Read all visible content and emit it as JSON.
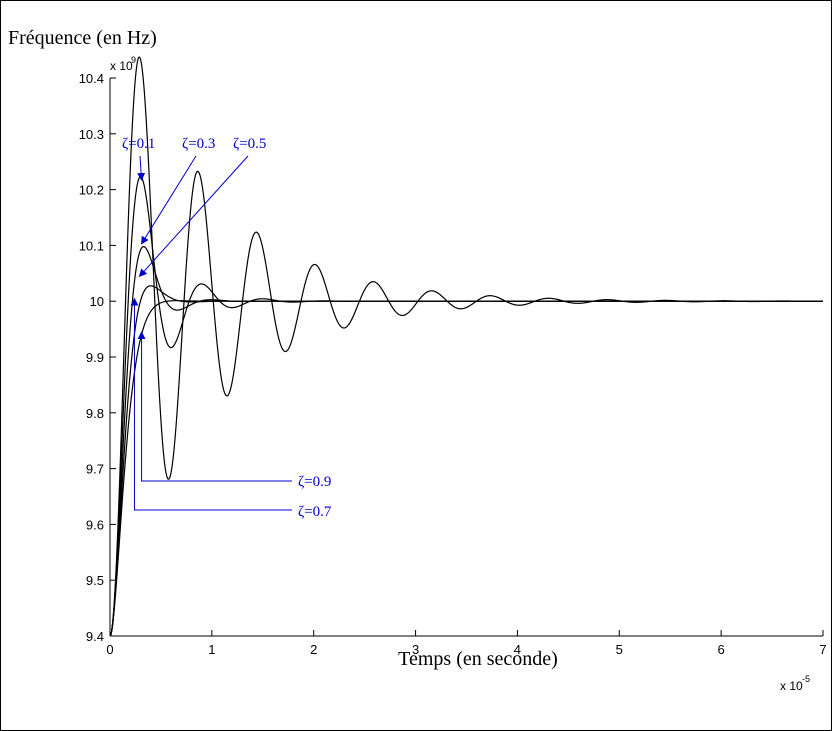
{
  "chart_data": {
    "type": "line",
    "title": "",
    "ylabel": "Fréquence (en Hz)",
    "xlabel": "Temps (en seconde)",
    "y_exponent_label": "x 10",
    "y_exponent_power": "9",
    "x_exponent_label": "x 10",
    "x_exponent_power": "-5",
    "xlim": [
      0,
      7
    ],
    "ylim": [
      9.4,
      10.4
    ],
    "x_ticks": [
      0,
      1,
      2,
      3,
      4,
      5,
      6,
      7
    ],
    "y_ticks": [
      9.4,
      9.5,
      9.6,
      9.7,
      9.8,
      9.9,
      10,
      10.1,
      10.2,
      10.3,
      10.4
    ],
    "x_tick_labels": [
      "0",
      "1",
      "2",
      "3",
      "4",
      "5",
      "6",
      "7"
    ],
    "y_tick_labels": [
      "9.4",
      "9.5",
      "9.6",
      "9.7",
      "9.8",
      "9.9",
      "10",
      "10.1",
      "10.2",
      "10.3",
      "10.4"
    ],
    "steady_state": 10.0,
    "initial_value": 9.4,
    "grid": false,
    "series": [
      {
        "name": "ζ=0.1",
        "zeta": 0.1,
        "peak": [
          0.31,
          10.21
        ]
      },
      {
        "name": "ζ=0.3",
        "zeta": 0.3,
        "peak": [
          0.28,
          10.11
        ]
      },
      {
        "name": "ζ=0.5",
        "zeta": 0.5,
        "peak": [
          0.27,
          10.05
        ]
      },
      {
        "name": "ζ=0.7",
        "zeta": 0.7,
        "peak": [
          0.24,
          10.01
        ]
      },
      {
        "name": "ζ=0.9",
        "zeta": 0.9,
        "peak": [
          0.31,
          9.95
        ]
      }
    ],
    "annotations": [
      {
        "text": "ζ=0.1",
        "target_series": 0
      },
      {
        "text": "ζ=0.3",
        "target_series": 1
      },
      {
        "text": "ζ=0.5",
        "target_series": 2
      },
      {
        "text": "ζ=0.9",
        "target_series": 4
      },
      {
        "text": "ζ=0.7",
        "target_series": 3
      }
    ],
    "colors": {
      "curves": "#000000",
      "annotations": "#0000cc",
      "axes": "#000000"
    }
  }
}
